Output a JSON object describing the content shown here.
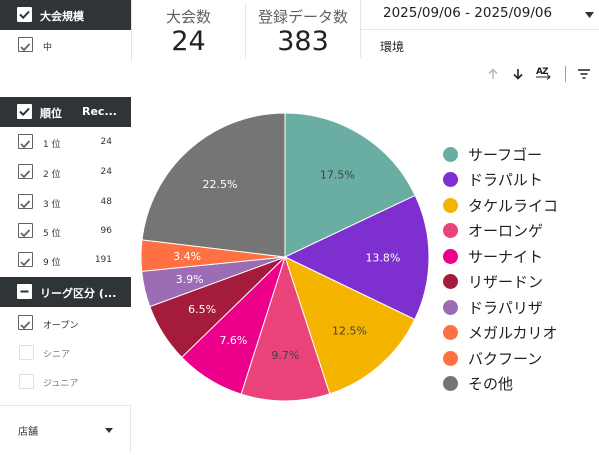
{
  "filters": {
    "scale": {
      "title": "大会規模",
      "options": [
        {
          "label": "中",
          "checked": true
        }
      ]
    },
    "rank": {
      "title": "順位",
      "col2": "Rec...",
      "rows": [
        {
          "label": "1 位",
          "count": "24",
          "checked": true
        },
        {
          "label": "2 位",
          "count": "24",
          "checked": true
        },
        {
          "label": "3 位",
          "count": "48",
          "checked": true
        },
        {
          "label": "5 位",
          "count": "96",
          "checked": true
        },
        {
          "label": "9 位",
          "count": "191",
          "checked": true
        }
      ]
    },
    "league": {
      "title": "リーグ区分 (...",
      "options": [
        {
          "label": "オープン",
          "checked": true
        },
        {
          "label": "シニア",
          "checked": false
        },
        {
          "label": "ジュニア",
          "checked": false
        }
      ]
    },
    "store": {
      "label": "店舗"
    }
  },
  "kpis": [
    {
      "label": "大会数",
      "value": "24"
    },
    {
      "label": "登録データ数",
      "value": "383"
    }
  ],
  "date_range": "2025/09/06 - 2025/09/06",
  "environment_label": "環境",
  "toolbar": {
    "sort_asc_icon": "arrow-up-icon",
    "sort_desc_icon": "arrow-down-icon",
    "az_label": "AZ",
    "filter_icon": "filter-lines-icon"
  },
  "chart_data": {
    "type": "pie",
    "slices": [
      {
        "label": "サーフゴー",
        "value": 17.5,
        "display": "17.5%",
        "color": "#6aaea3"
      },
      {
        "label": "ドラパルト",
        "value": 13.8,
        "display": "13.8%",
        "color": "#7d2fd0"
      },
      {
        "label": "タケルライコ",
        "value": 12.5,
        "display": "12.5%",
        "color": "#f5b400"
      },
      {
        "label": "オーロンゲ",
        "value": 9.7,
        "display": "9.7%",
        "color": "#ea4379"
      },
      {
        "label": "サーナイト",
        "value": 7.6,
        "display": "7.6%",
        "color": "#ec008b"
      },
      {
        "label": "リザードン",
        "value": 6.5,
        "display": "6.5%",
        "color": "#a51b3c"
      },
      {
        "label": "ドラパリザ",
        "value": 3.9,
        "display": "3.9%",
        "color": "#9c6cb4"
      },
      {
        "label": "メガルカリオ",
        "value": 3.4,
        "display": "3.4%",
        "color": "#ff7043"
      },
      {
        "label": "バクフーン",
        "value": 0,
        "display": "",
        "color": "#ff7043"
      },
      {
        "label": "その他",
        "value": 22.5,
        "display": "22.5%",
        "color": "#757575"
      }
    ],
    "legend_position": "right"
  }
}
